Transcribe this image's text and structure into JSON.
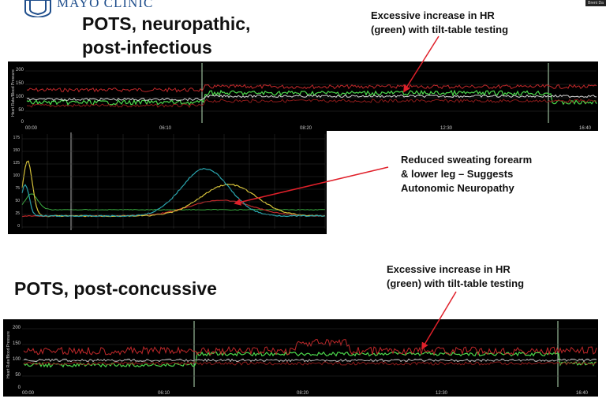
{
  "header": {
    "logo_text": "MAYO CLINIC",
    "corner_badge": "Brent Da"
  },
  "section1": {
    "title_line1": "POTS, neuropathic,",
    "title_line2": "post-infectious",
    "annotation_line1": "Excessive increase in HR",
    "annotation_line2": "(green) with tilt-table testing",
    "chart_ylabel": "Heart Rate/Blood Pressure",
    "chart_yticks": [
      "200",
      "150",
      "100",
      "50",
      "0"
    ],
    "chart_xticks": [
      "00:00",
      "06:10",
      "08:20",
      "12:30",
      "16:40"
    ]
  },
  "sweat": {
    "annotation_line1": "Reduced sweating forearm",
    "annotation_line2": "& lower leg – Suggests",
    "annotation_line3": "Autonomic Neuropathy",
    "yticks": [
      "175",
      "150",
      "125",
      "100",
      "75",
      "50",
      "25",
      "0"
    ]
  },
  "section2": {
    "title": "POTS, post-concussive",
    "annotation_line1": "Excessive increase in HR",
    "annotation_line2": "(green) with tilt-table testing",
    "chart_ylabel": "Heart Rate/Blood Pressure",
    "chart_yticks": [
      "200",
      "150",
      "100",
      "50",
      "0"
    ],
    "chart_xticks": [
      "00:00",
      "06:10",
      "08:20",
      "12:30",
      "16:40"
    ]
  },
  "colors": {
    "heart_rate": "#4cd94c",
    "systolic": "#c0282a",
    "diastolic": "#8b1a1a",
    "mean": "#d8d8d8",
    "sweat_cyan": "#2aa7b0",
    "sweat_yellow": "#d8c43a",
    "sweat_red": "#c0282a",
    "sweat_green": "#3cb043",
    "arrow": "#e0202a"
  }
}
